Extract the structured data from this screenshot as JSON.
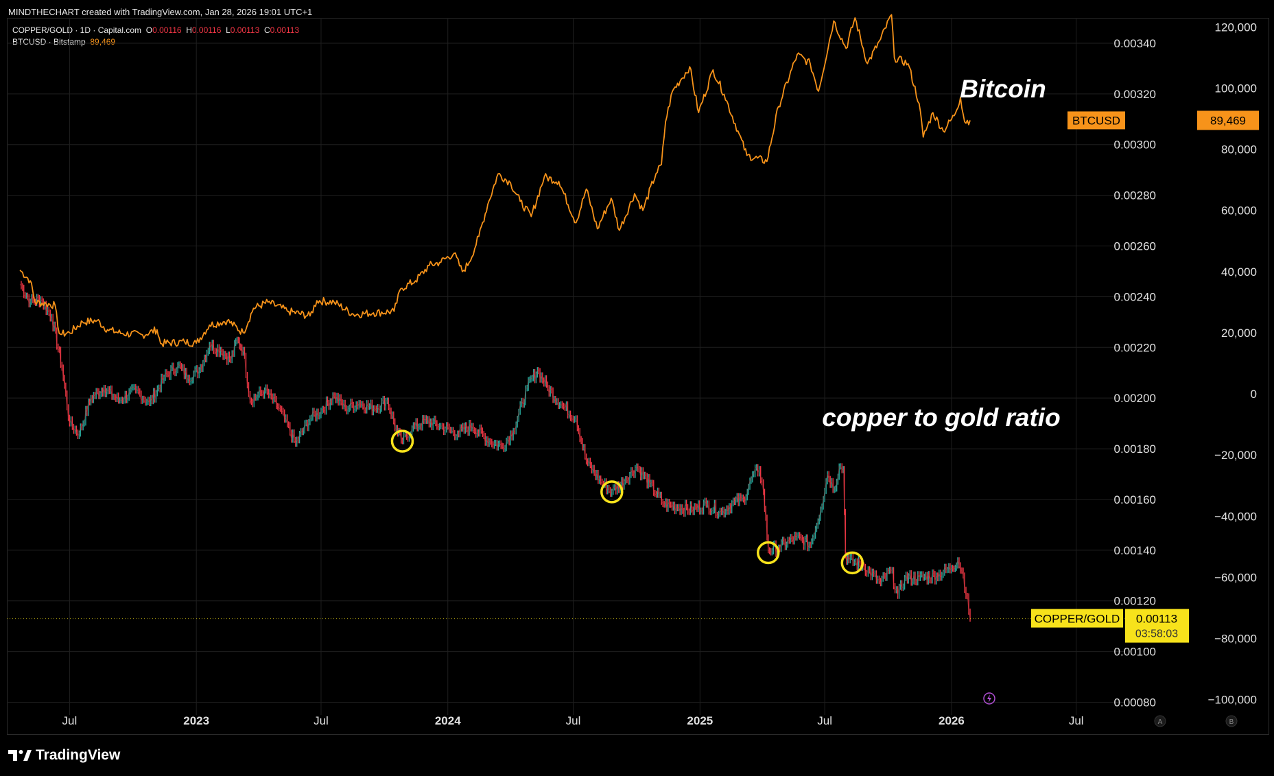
{
  "header": {
    "credit": "MINDTHECHART created with TradingView.com, Jan 28, 2026 19:01 UTC+1"
  },
  "legend": {
    "copper": {
      "symbol": "COPPER/GOLD · 1D · Capital.com",
      "o_label": "O",
      "o_val": "0.00116",
      "h_label": "H",
      "h_val": "0.00116",
      "l_label": "L",
      "l_val": "0.00113",
      "c_label": "C",
      "c_val": "0.00113"
    },
    "btc": {
      "symbol": "BTCUSD · Bitstamp",
      "value": "89,469"
    }
  },
  "footer": {
    "brand": "TradingView"
  },
  "colors": {
    "background": "#000000",
    "btc": "#f7931a",
    "up": "#26a69a",
    "down": "#f23645",
    "marker": "#f7e21b",
    "grid": "#1f1f1f"
  },
  "chart_data": {
    "type": "line",
    "x_ticks": [
      {
        "label": "Jul",
        "date": "2022-07-01",
        "bold": false
      },
      {
        "label": "2023",
        "date": "2023-01-01",
        "bold": true
      },
      {
        "label": "Jul",
        "date": "2023-07-01",
        "bold": false
      },
      {
        "label": "2024",
        "date": "2024-01-01",
        "bold": true
      },
      {
        "label": "Jul",
        "date": "2024-07-01",
        "bold": false
      },
      {
        "label": "2025",
        "date": "2025-01-01",
        "bold": true
      },
      {
        "label": "Jul",
        "date": "2025-07-01",
        "bold": false
      },
      {
        "label": "2026",
        "date": "2026-01-01",
        "bold": true
      },
      {
        "label": "Jul",
        "date": "2026-07-01",
        "bold": false
      }
    ],
    "xlim": [
      "2022-04-01",
      "2026-09-10"
    ],
    "left_axis": {
      "ticks": [
        "0.00340",
        "0.00320",
        "0.00300",
        "0.00280",
        "0.00260",
        "0.00240",
        "0.00220",
        "0.00200",
        "0.00180",
        "0.00160",
        "0.00140",
        "0.00120",
        "0.00100",
        "0.00080"
      ],
      "ylim": [
        0.00075,
        0.0035
      ]
    },
    "right_axis": {
      "ticks": [
        "120,000",
        "100,000",
        "80,000",
        "60,000",
        "40,000",
        "20,000",
        "0",
        "−20,000",
        "−40,000",
        "−60,000",
        "−80,000",
        "−100,000"
      ],
      "ylim": [
        -105000,
        123000
      ]
    },
    "annotations": {
      "btc": "Bitcoin",
      "ratio": "copper to gold ratio"
    },
    "price_labels": {
      "btc_name": "BTCUSD",
      "btc_value": "89,469",
      "ratio_name": "COPPER/GOLD",
      "ratio_value": "0.00113",
      "countdown": "03:58:03"
    },
    "axis_badges": [
      "A",
      "B"
    ],
    "series": [
      {
        "name": "BTCUSD",
        "axis": "right",
        "points": [
          [
            "2022-04-20",
            40500
          ],
          [
            "2022-05-05",
            37000
          ],
          [
            "2022-05-12",
            30000
          ],
          [
            "2022-05-28",
            29500
          ],
          [
            "2022-06-10",
            29000
          ],
          [
            "2022-06-14",
            22000
          ],
          [
            "2022-06-18",
            19500
          ],
          [
            "2022-07-01",
            20000
          ],
          [
            "2022-07-20",
            23500
          ],
          [
            "2022-08-10",
            24000
          ],
          [
            "2022-08-25",
            21000
          ],
          [
            "2022-09-15",
            19800
          ],
          [
            "2022-10-15",
            19300
          ],
          [
            "2022-11-05",
            21000
          ],
          [
            "2022-11-10",
            16500
          ],
          [
            "2022-12-15",
            17000
          ],
          [
            "2023-01-01",
            16600
          ],
          [
            "2023-01-20",
            22500
          ],
          [
            "2023-02-15",
            24000
          ],
          [
            "2023-03-10",
            20000
          ],
          [
            "2023-03-25",
            28000
          ],
          [
            "2023-04-15",
            30000
          ],
          [
            "2023-05-15",
            27000
          ],
          [
            "2023-06-15",
            25500
          ],
          [
            "2023-06-25",
            30500
          ],
          [
            "2023-07-20",
            30000
          ],
          [
            "2023-08-17",
            26000
          ],
          [
            "2023-09-15",
            26500
          ],
          [
            "2023-10-15",
            27000
          ],
          [
            "2023-10-25",
            34500
          ],
          [
            "2023-11-15",
            37000
          ],
          [
            "2023-12-05",
            42000
          ],
          [
            "2023-12-20",
            43000
          ],
          [
            "2024-01-10",
            46000
          ],
          [
            "2024-01-22",
            40000
          ],
          [
            "2024-02-01",
            43000
          ],
          [
            "2024-02-15",
            51500
          ],
          [
            "2024-02-28",
            62000
          ],
          [
            "2024-03-14",
            72000
          ],
          [
            "2024-04-01",
            69000
          ],
          [
            "2024-04-15",
            63000
          ],
          [
            "2024-05-01",
            58000
          ],
          [
            "2024-05-20",
            71000
          ],
          [
            "2024-06-10",
            69500
          ],
          [
            "2024-07-05",
            56000
          ],
          [
            "2024-07-20",
            67000
          ],
          [
            "2024-08-05",
            54000
          ],
          [
            "2024-08-25",
            64000
          ],
          [
            "2024-09-06",
            53500
          ],
          [
            "2024-09-28",
            65500
          ],
          [
            "2024-10-10",
            60000
          ],
          [
            "2024-10-29",
            72000
          ],
          [
            "2024-11-06",
            75000
          ],
          [
            "2024-11-12",
            89000
          ],
          [
            "2024-11-22",
            99000
          ],
          [
            "2024-12-05",
            103000
          ],
          [
            "2024-12-17",
            107000
          ],
          [
            "2024-12-30",
            92000
          ],
          [
            "2025-01-20",
            106000
          ],
          [
            "2025-02-05",
            98000
          ],
          [
            "2025-02-25",
            86000
          ],
          [
            "2025-03-10",
            78000
          ],
          [
            "2025-04-08",
            76000
          ],
          [
            "2025-04-25",
            94000
          ],
          [
            "2025-05-22",
            111000
          ],
          [
            "2025-06-10",
            108000
          ],
          [
            "2025-06-22",
            99000
          ],
          [
            "2025-07-14",
            122000
          ],
          [
            "2025-08-01",
            113000
          ],
          [
            "2025-08-14",
            123000
          ],
          [
            "2025-09-01",
            108000
          ],
          [
            "2025-09-20",
            116000
          ],
          [
            "2025-10-06",
            124000
          ],
          [
            "2025-10-10",
            110000
          ],
          [
            "2025-10-30",
            108000
          ],
          [
            "2025-11-15",
            95000
          ],
          [
            "2025-11-21",
            84000
          ],
          [
            "2025-12-05",
            92000
          ],
          [
            "2025-12-20",
            86000
          ],
          [
            "2026-01-05",
            91000
          ],
          [
            "2026-01-14",
            97000
          ],
          [
            "2026-01-20",
            89000
          ],
          [
            "2026-01-28",
            89469
          ]
        ]
      },
      {
        "name": "COPPER/GOLD",
        "axis": "left",
        "points": [
          [
            "2022-04-20",
            0.00245
          ],
          [
            "2022-05-05",
            0.00238
          ],
          [
            "2022-05-20",
            0.00239
          ],
          [
            "2022-06-05",
            0.00232
          ],
          [
            "2022-06-20",
            0.00212
          ],
          [
            "2022-07-01",
            0.0019
          ],
          [
            "2022-07-15",
            0.00186
          ],
          [
            "2022-08-01",
            0.002
          ],
          [
            "2022-08-20",
            0.00204
          ],
          [
            "2022-09-10",
            0.00199
          ],
          [
            "2022-10-05",
            0.00203
          ],
          [
            "2022-10-25",
            0.00198
          ],
          [
            "2022-11-15",
            0.00208
          ],
          [
            "2022-12-05",
            0.00213
          ],
          [
            "2022-12-20",
            0.00208
          ],
          [
            "2023-01-05",
            0.00211
          ],
          [
            "2023-01-20",
            0.00221
          ],
          [
            "2023-02-05",
            0.00219
          ],
          [
            "2023-02-20",
            0.00215
          ],
          [
            "2023-03-01",
            0.00223
          ],
          [
            "2023-03-10",
            0.00219
          ],
          [
            "2023-03-20",
            0.00199
          ],
          [
            "2023-04-10",
            0.00203
          ],
          [
            "2023-05-01",
            0.00196
          ],
          [
            "2023-05-25",
            0.00182
          ],
          [
            "2023-06-15",
            0.00192
          ],
          [
            "2023-07-01",
            0.00195
          ],
          [
            "2023-07-20",
            0.00201
          ],
          [
            "2023-08-05",
            0.00196
          ],
          [
            "2023-08-25",
            0.00198
          ],
          [
            "2023-09-15",
            0.00196
          ],
          [
            "2023-10-05",
            0.00199
          ],
          [
            "2023-10-20",
            0.00186
          ],
          [
            "2023-10-27",
            0.00183
          ],
          [
            "2023-11-10",
            0.00188
          ],
          [
            "2023-12-01",
            0.00191
          ],
          [
            "2023-12-20",
            0.00189
          ],
          [
            "2024-01-15",
            0.00186
          ],
          [
            "2024-02-05",
            0.00189
          ],
          [
            "2024-03-01",
            0.00183
          ],
          [
            "2024-03-20",
            0.00181
          ],
          [
            "2024-04-05",
            0.00187
          ],
          [
            "2024-04-25",
            0.00204
          ],
          [
            "2024-05-10",
            0.00211
          ],
          [
            "2024-05-25",
            0.00204
          ],
          [
            "2024-06-15",
            0.00197
          ],
          [
            "2024-07-05",
            0.00192
          ],
          [
            "2024-07-20",
            0.00175
          ],
          [
            "2024-08-10",
            0.00167
          ],
          [
            "2024-08-26",
            0.00163
          ],
          [
            "2024-09-15",
            0.00168
          ],
          [
            "2024-10-01",
            0.00173
          ],
          [
            "2024-10-20",
            0.00166
          ],
          [
            "2024-11-10",
            0.00158
          ],
          [
            "2024-12-01",
            0.00157
          ],
          [
            "2024-12-20",
            0.00156
          ],
          [
            "2025-01-10",
            0.00158
          ],
          [
            "2025-02-01",
            0.00155
          ],
          [
            "2025-02-20",
            0.00159
          ],
          [
            "2025-03-05",
            0.0016
          ],
          [
            "2025-03-20",
            0.0017
          ],
          [
            "2025-03-28",
            0.00172
          ],
          [
            "2025-04-03",
            0.00163
          ],
          [
            "2025-04-10",
            0.0014
          ],
          [
            "2025-04-25",
            0.00141
          ],
          [
            "2025-05-20",
            0.00145
          ],
          [
            "2025-06-10",
            0.00142
          ],
          [
            "2025-06-25",
            0.00156
          ],
          [
            "2025-07-05",
            0.0017
          ],
          [
            "2025-07-15",
            0.00164
          ],
          [
            "2025-07-22",
            0.00173
          ],
          [
            "2025-07-28",
            0.00172
          ],
          [
            "2025-07-31",
            0.00138
          ],
          [
            "2025-08-05",
            0.00136
          ],
          [
            "2025-08-25",
            0.00134
          ],
          [
            "2025-09-20",
            0.00127
          ],
          [
            "2025-10-05",
            0.00132
          ],
          [
            "2025-10-15",
            0.00122
          ],
          [
            "2025-10-25",
            0.00129
          ],
          [
            "2025-11-15",
            0.00129
          ],
          [
            "2025-12-10",
            0.0013
          ],
          [
            "2026-01-01",
            0.00133
          ],
          [
            "2026-01-10",
            0.00136
          ],
          [
            "2026-01-18",
            0.0013
          ],
          [
            "2026-01-28",
            0.00113
          ]
        ]
      }
    ],
    "markers": [
      {
        "date": "2023-10-27",
        "value": 0.00183
      },
      {
        "date": "2024-08-26",
        "value": 0.00163
      },
      {
        "date": "2025-04-10",
        "value": 0.00139
      },
      {
        "date": "2025-08-10",
        "value": 0.00135
      }
    ]
  }
}
